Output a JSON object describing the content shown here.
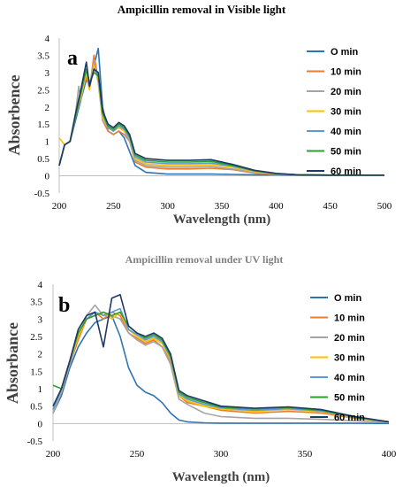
{
  "chart_data": [
    {
      "type": "line",
      "panel_letter": "a",
      "title": "Ampicillin removal in Visible light",
      "xlabel": "Wavelength (nm)",
      "ylabel": "Absorbence",
      "xlim": [
        200,
        500
      ],
      "ylim": [
        -0.5,
        4
      ],
      "xticks": [
        200,
        250,
        300,
        350,
        400,
        450,
        500
      ],
      "yticks": [
        -0.5,
        0,
        0.5,
        1,
        1.5,
        2,
        2.5,
        3,
        3.5,
        4
      ],
      "legend_position": "right",
      "series": [
        {
          "name": "O min",
          "color": "#2e75b6",
          "x": [
            200,
            205,
            210,
            215,
            220,
            225,
            228,
            232,
            236,
            240,
            245,
            250,
            255,
            260,
            265,
            270,
            280,
            300,
            320,
            340,
            360,
            380,
            400,
            420,
            450,
            500
          ],
          "y": [
            0.3,
            0.9,
            1.0,
            1.6,
            2.2,
            2.8,
            2.6,
            3.2,
            3.7,
            2.0,
            1.3,
            1.2,
            1.3,
            1.1,
            0.7,
            0.3,
            0.1,
            0.05,
            0.05,
            0.05,
            0.04,
            0.03,
            0.03,
            0.02,
            0.02,
            0.02
          ]
        },
        {
          "name": "10 min",
          "color": "#ed7d31",
          "x": [
            200,
            205,
            210,
            215,
            220,
            225,
            228,
            232,
            236,
            240,
            245,
            250,
            255,
            260,
            265,
            270,
            280,
            300,
            320,
            340,
            360,
            380,
            400,
            420,
            450,
            500
          ],
          "y": [
            0.3,
            0.9,
            1.0,
            1.7,
            2.3,
            2.9,
            2.5,
            3.5,
            2.8,
            1.6,
            1.3,
            1.2,
            1.3,
            1.2,
            1.0,
            0.4,
            0.25,
            0.2,
            0.2,
            0.22,
            0.18,
            0.08,
            0.04,
            0.03,
            0.02,
            0.02
          ]
        },
        {
          "name": "20  min",
          "color": "#a5a5a5",
          "x": [
            200,
            205,
            210,
            215,
            218,
            220,
            225,
            228,
            232,
            236,
            240,
            245,
            250,
            255,
            260,
            265,
            270,
            280,
            300,
            320,
            340,
            360,
            380,
            400,
            420,
            450,
            500
          ],
          "y": [
            0.3,
            0.9,
            1.0,
            1.8,
            2.6,
            2.2,
            3.0,
            2.6,
            3.3,
            2.7,
            1.6,
            1.4,
            1.3,
            1.4,
            1.3,
            1.0,
            0.45,
            0.3,
            0.25,
            0.25,
            0.27,
            0.2,
            0.1,
            0.05,
            0.03,
            0.02,
            0.02
          ]
        },
        {
          "name": "30 min",
          "color": "#ffc000",
          "x": [
            200,
            205,
            210,
            215,
            220,
            225,
            228,
            232,
            236,
            240,
            245,
            250,
            255,
            260,
            265,
            270,
            280,
            300,
            320,
            340,
            360,
            380,
            400,
            420,
            450,
            500
          ],
          "y": [
            1.1,
            0.9,
            1.0,
            1.7,
            2.3,
            3.0,
            2.5,
            3.2,
            2.8,
            1.7,
            1.4,
            1.3,
            1.4,
            1.3,
            1.1,
            0.5,
            0.35,
            0.3,
            0.3,
            0.32,
            0.25,
            0.12,
            0.06,
            0.03,
            0.02,
            0.02
          ]
        },
        {
          "name": "40 min",
          "color": "#5b9bd5",
          "x": [
            200,
            205,
            210,
            215,
            220,
            225,
            228,
            232,
            236,
            240,
            245,
            250,
            255,
            260,
            265,
            270,
            280,
            300,
            320,
            340,
            360,
            380,
            400,
            420,
            450,
            500
          ],
          "y": [
            0.3,
            0.9,
            1.0,
            1.7,
            2.4,
            3.1,
            2.6,
            3.1,
            2.9,
            1.8,
            1.4,
            1.3,
            1.45,
            1.35,
            1.1,
            0.55,
            0.4,
            0.35,
            0.35,
            0.37,
            0.28,
            0.14,
            0.06,
            0.03,
            0.02,
            0.02
          ]
        },
        {
          "name": "50 min",
          "color": "#2ca02c",
          "x": [
            200,
            205,
            210,
            215,
            220,
            225,
            228,
            232,
            236,
            240,
            245,
            250,
            255,
            260,
            265,
            270,
            280,
            300,
            320,
            340,
            360,
            380,
            400,
            420,
            450,
            500
          ],
          "y": [
            0.3,
            0.9,
            1.0,
            1.7,
            2.4,
            3.1,
            2.7,
            3.0,
            2.9,
            1.8,
            1.45,
            1.35,
            1.5,
            1.4,
            1.15,
            0.6,
            0.45,
            0.4,
            0.4,
            0.42,
            0.3,
            0.15,
            0.06,
            0.03,
            0.02,
            0.02
          ]
        },
        {
          "name": "60 min",
          "color": "#1f3864",
          "x": [
            200,
            205,
            210,
            215,
            220,
            225,
            228,
            232,
            236,
            240,
            245,
            250,
            255,
            260,
            265,
            270,
            280,
            300,
            320,
            340,
            360,
            380,
            400,
            420,
            450,
            500
          ],
          "y": [
            0.3,
            0.9,
            1.0,
            1.8,
            2.5,
            3.3,
            2.6,
            3.1,
            3.0,
            1.9,
            1.5,
            1.4,
            1.55,
            1.45,
            1.2,
            0.65,
            0.5,
            0.45,
            0.45,
            0.47,
            0.33,
            0.16,
            0.07,
            0.03,
            0.02,
            0.02
          ]
        }
      ]
    },
    {
      "type": "line",
      "panel_letter": "b",
      "title": "Ampicillin removal under UV light",
      "xlabel": "Wavelength (nm)",
      "ylabel": "Absorbance",
      "xlim": [
        200,
        400
      ],
      "ylim": [
        -0.5,
        4
      ],
      "xticks": [
        200,
        250,
        300,
        350,
        400
      ],
      "yticks": [
        -0.5,
        0,
        0.5,
        1,
        1.5,
        2,
        2.5,
        3,
        3.5,
        4
      ],
      "legend_position": "right",
      "series": [
        {
          "name": "O min",
          "color": "#2e75b6",
          "x": [
            200,
            205,
            210,
            215,
            220,
            225,
            230,
            235,
            240,
            245,
            250,
            255,
            260,
            265,
            270,
            275,
            280,
            290,
            300,
            320,
            340,
            360,
            380,
            400
          ],
          "y": [
            0.3,
            0.8,
            1.6,
            2.2,
            2.6,
            2.9,
            3.0,
            3.1,
            2.5,
            1.6,
            1.1,
            0.9,
            0.8,
            0.6,
            0.3,
            0.1,
            0.05,
            0.02,
            0.01,
            0.01,
            0.01,
            0.01,
            0.01,
            0.0
          ]
        },
        {
          "name": "10 min",
          "color": "#ed7d31",
          "x": [
            200,
            205,
            210,
            215,
            220,
            225,
            230,
            235,
            240,
            245,
            250,
            255,
            260,
            265,
            270,
            275,
            280,
            290,
            300,
            320,
            340,
            360,
            380,
            400
          ],
          "y": [
            0.3,
            0.9,
            1.7,
            2.4,
            3.0,
            3.2,
            3.0,
            3.2,
            3.1,
            2.6,
            2.45,
            2.3,
            2.4,
            2.2,
            1.8,
            0.8,
            0.6,
            0.5,
            0.38,
            0.3,
            0.35,
            0.3,
            0.15,
            0.05
          ]
        },
        {
          "name": "20 min",
          "color": "#a5a5a5",
          "x": [
            200,
            205,
            210,
            215,
            220,
            225,
            230,
            235,
            240,
            245,
            250,
            255,
            260,
            265,
            270,
            275,
            280,
            290,
            300,
            320,
            340,
            360,
            380,
            400
          ],
          "y": [
            0.3,
            0.9,
            1.7,
            2.5,
            3.1,
            3.4,
            3.1,
            3.1,
            3.0,
            2.6,
            2.4,
            2.25,
            2.35,
            2.2,
            1.7,
            0.7,
            0.55,
            0.3,
            0.2,
            0.15,
            0.15,
            0.12,
            0.08,
            0.03
          ]
        },
        {
          "name": "30 min",
          "color": "#ffc000",
          "x": [
            200,
            205,
            210,
            215,
            220,
            225,
            230,
            235,
            240,
            245,
            250,
            255,
            260,
            265,
            270,
            275,
            280,
            290,
            300,
            320,
            340,
            360,
            380,
            400
          ],
          "y": [
            0.4,
            1.0,
            1.8,
            2.5,
            3.0,
            3.1,
            3.2,
            3.0,
            3.2,
            2.7,
            2.5,
            2.35,
            2.45,
            2.3,
            1.85,
            0.8,
            0.65,
            0.5,
            0.42,
            0.35,
            0.4,
            0.34,
            0.16,
            0.05
          ]
        },
        {
          "name": "40 min",
          "color": "#5b9bd5",
          "x": [
            200,
            205,
            210,
            215,
            220,
            225,
            230,
            235,
            240,
            245,
            250,
            255,
            260,
            265,
            270,
            275,
            280,
            290,
            300,
            320,
            340,
            360,
            380,
            400
          ],
          "y": [
            0.4,
            1.0,
            1.8,
            2.6,
            3.0,
            3.2,
            3.1,
            3.2,
            3.3,
            2.7,
            2.55,
            2.4,
            2.5,
            2.35,
            1.9,
            0.85,
            0.7,
            0.55,
            0.45,
            0.38,
            0.43,
            0.36,
            0.17,
            0.05
          ]
        },
        {
          "name": "50 min",
          "color": "#2ca02c",
          "x": [
            200,
            205,
            210,
            215,
            220,
            225,
            230,
            235,
            240,
            245,
            250,
            255,
            260,
            265,
            270,
            275,
            280,
            290,
            300,
            320,
            340,
            360,
            380,
            400
          ],
          "y": [
            1.1,
            1.0,
            1.8,
            2.6,
            3.0,
            3.1,
            3.2,
            3.1,
            3.2,
            2.8,
            2.6,
            2.45,
            2.55,
            2.4,
            1.95,
            0.9,
            0.75,
            0.6,
            0.48,
            0.42,
            0.46,
            0.38,
            0.18,
            0.05
          ]
        },
        {
          "name": "60 min",
          "color": "#1f3864",
          "x": [
            200,
            205,
            210,
            215,
            220,
            225,
            230,
            235,
            240,
            245,
            250,
            255,
            260,
            265,
            270,
            275,
            280,
            290,
            300,
            320,
            340,
            360,
            380,
            400
          ],
          "y": [
            0.5,
            1.0,
            1.8,
            2.7,
            3.1,
            3.2,
            2.2,
            3.6,
            3.7,
            2.8,
            2.6,
            2.5,
            2.6,
            2.45,
            2.0,
            0.95,
            0.8,
            0.65,
            0.5,
            0.44,
            0.48,
            0.4,
            0.2,
            0.05
          ]
        }
      ]
    }
  ]
}
